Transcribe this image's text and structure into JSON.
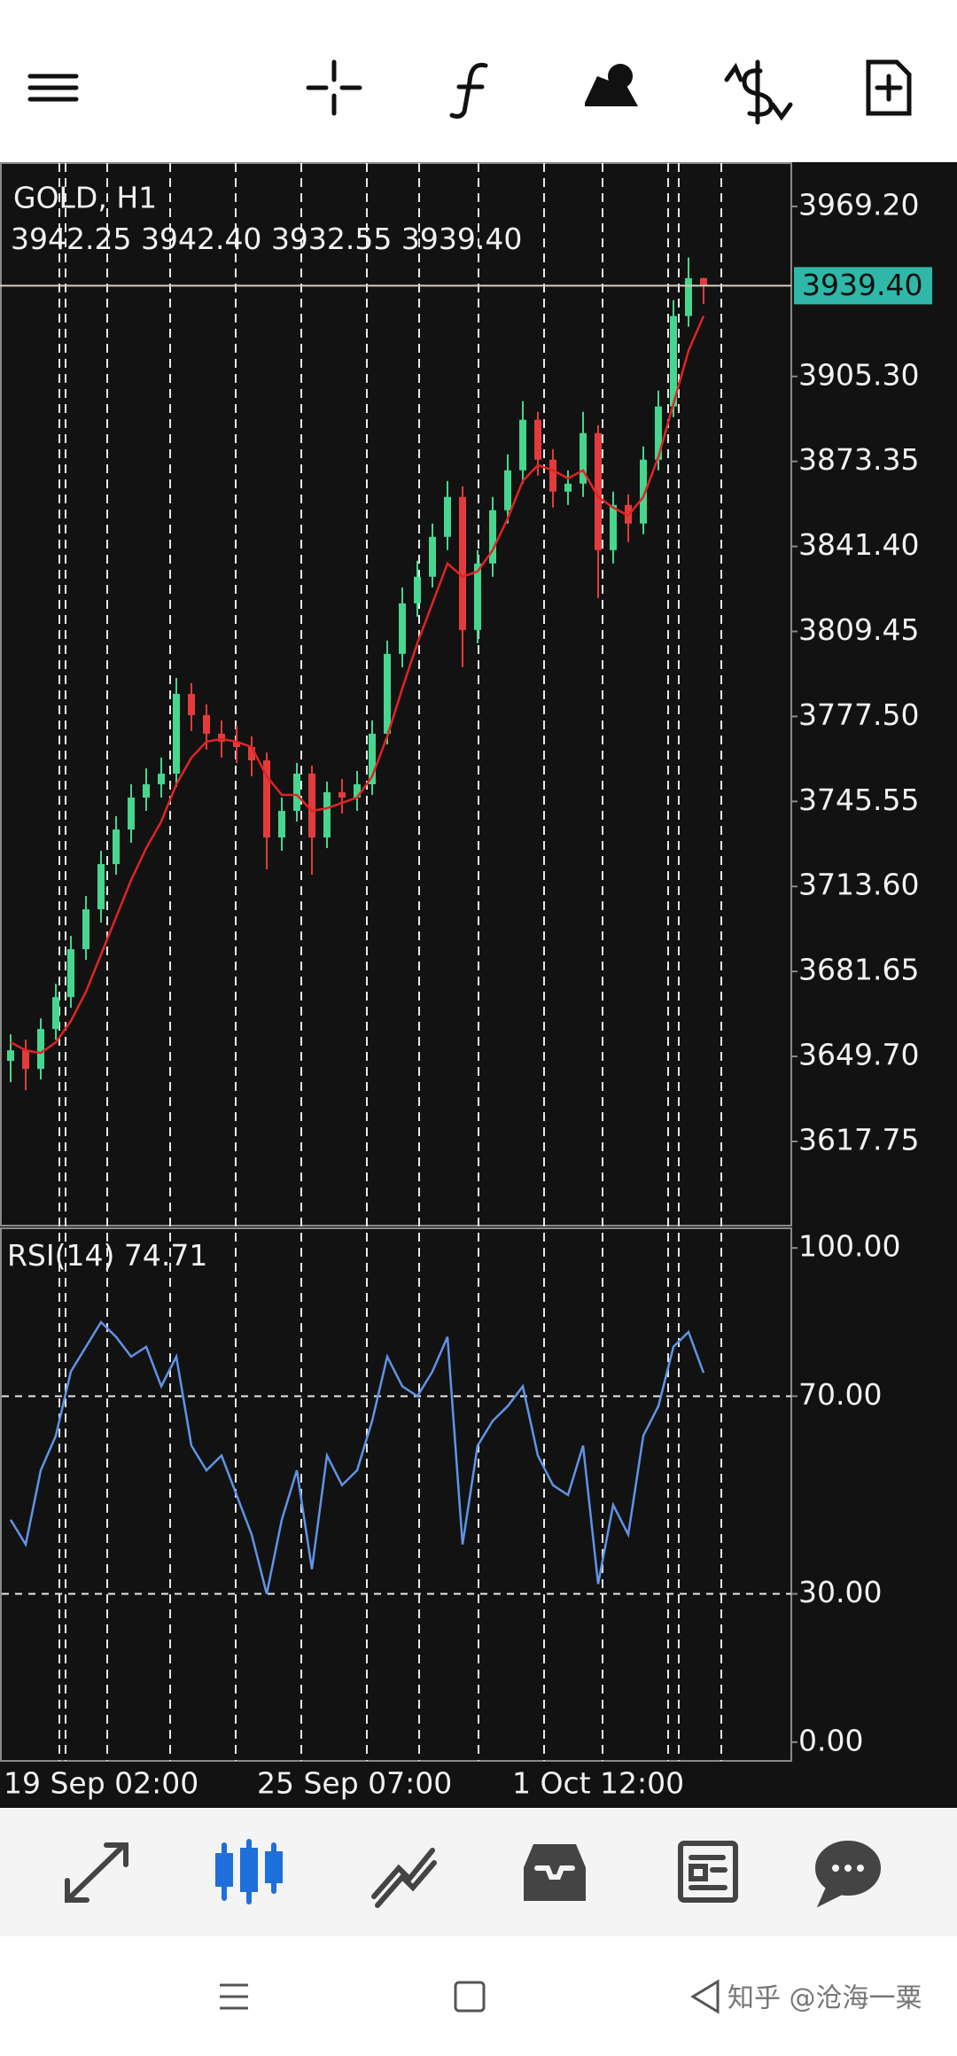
{
  "chart_data": [
    {
      "type": "candlestick",
      "title": "GOLD, H1",
      "last_bar_labels": [
        "3942.25",
        "3942.40",
        "3932.55",
        "3939.40"
      ],
      "open": [
        3648,
        3652,
        3645,
        3660,
        3672,
        3690,
        3705,
        3722,
        3735,
        3747,
        3752,
        3756,
        3786,
        3778,
        3771,
        3768,
        3766,
        3761,
        3732,
        3742,
        3756,
        3732,
        3749,
        3747,
        3752,
        3771,
        3801,
        3820,
        3830,
        3845,
        3860,
        3810,
        3835,
        3855,
        3870,
        3889,
        3874,
        3862,
        3865,
        3884,
        3840,
        3857,
        3850,
        3874,
        3894,
        3928,
        3942.25
      ],
      "high": [
        3658,
        3656,
        3664,
        3677,
        3695,
        3710,
        3727,
        3740,
        3752,
        3758,
        3762,
        3792,
        3790,
        3782,
        3776,
        3774,
        3770,
        3764,
        3747,
        3760,
        3759,
        3753,
        3754,
        3757,
        3776,
        3806,
        3826,
        3836,
        3850,
        3866,
        3864,
        3840,
        3860,
        3876,
        3896,
        3892,
        3878,
        3870,
        3892,
        3887,
        3862,
        3861,
        3879,
        3900,
        3934,
        3950,
        3942.4
      ],
      "low": [
        3640,
        3637,
        3641,
        3656,
        3668,
        3686,
        3700,
        3718,
        3730,
        3742,
        3747,
        3751,
        3772,
        3765,
        3762,
        3760,
        3755,
        3720,
        3727,
        3738,
        3718,
        3728,
        3741,
        3742,
        3748,
        3767,
        3796,
        3815,
        3826,
        3840,
        3796,
        3805,
        3830,
        3850,
        3865,
        3868,
        3856,
        3857,
        3860,
        3822,
        3835,
        3843,
        3846,
        3870,
        3890,
        3924,
        3932.55
      ],
      "close": [
        3652,
        3645,
        3660,
        3672,
        3690,
        3705,
        3722,
        3735,
        3747,
        3752,
        3756,
        3786,
        3778,
        3771,
        3768,
        3766,
        3761,
        3732,
        3742,
        3756,
        3732,
        3749,
        3747,
        3752,
        3771,
        3801,
        3820,
        3830,
        3845,
        3860,
        3810,
        3835,
        3855,
        3870,
        3889,
        3874,
        3862,
        3865,
        3884,
        3840,
        3857,
        3850,
        3874,
        3894,
        3928,
        3942.25,
        3939.4
      ],
      "ma": {
        "color": "#e02424",
        "values": [
          3655,
          3652,
          3651,
          3655,
          3663,
          3674,
          3688,
          3702,
          3716,
          3728,
          3738,
          3752,
          3762,
          3768,
          3769,
          3768,
          3766,
          3755,
          3748,
          3748,
          3742,
          3743,
          3745,
          3747,
          3755,
          3770,
          3788,
          3805,
          3820,
          3835,
          3830,
          3832,
          3840,
          3852,
          3866,
          3872,
          3870,
          3867,
          3870,
          3860,
          3856,
          3853,
          3860,
          3875,
          3895,
          3915,
          3928
        ]
      },
      "up_color": "#46d68f",
      "down_color": "#e33b3b",
      "ylim": [
        3586.1,
        3985.5
      ],
      "yticks": [
        {
          "value": 3969.2,
          "label": "3969.20"
        },
        {
          "value": 3905.3,
          "label": "3905.30"
        },
        {
          "value": 3873.35,
          "label": "3873.35"
        },
        {
          "value": 3841.4,
          "label": "3841.40"
        },
        {
          "value": 3809.45,
          "label": "3809.45"
        },
        {
          "value": 3777.5,
          "label": "3777.50"
        },
        {
          "value": 3745.55,
          "label": "3745.55"
        },
        {
          "value": 3713.6,
          "label": "3713.60"
        },
        {
          "value": 3681.65,
          "label": "3681.65"
        },
        {
          "value": 3649.7,
          "label": "3649.70"
        },
        {
          "value": 3617.75,
          "label": "3617.75"
        }
      ],
      "xtick_labels": [
        "19 Sep 02:00",
        "25 Sep 07:00",
        "1 Oct 12:00"
      ]
    },
    {
      "type": "line",
      "title": "RSI(14)",
      "color": "#5f94e6",
      "values": [
        45,
        40,
        55,
        62,
        75,
        80,
        85,
        82,
        78,
        80,
        72,
        78,
        60,
        55,
        58,
        50,
        42,
        30,
        45,
        55,
        35,
        58,
        52,
        55,
        65,
        78,
        72,
        70,
        75,
        82,
        40,
        60,
        65,
        68,
        72,
        58,
        52,
        50,
        60,
        32,
        48,
        42,
        62,
        68,
        80,
        83,
        74.71
      ],
      "ylim": [
        -3.8,
        103.8
      ],
      "yticks": [
        {
          "value": 100,
          "label": "100.00"
        },
        {
          "value": 70,
          "label": "70.00"
        },
        {
          "value": 30,
          "label": "30.00"
        },
        {
          "value": 0,
          "label": "0.00"
        }
      ],
      "levels": [
        70,
        30
      ]
    }
  ],
  "watermark": "知乎 @沧海一粟"
}
